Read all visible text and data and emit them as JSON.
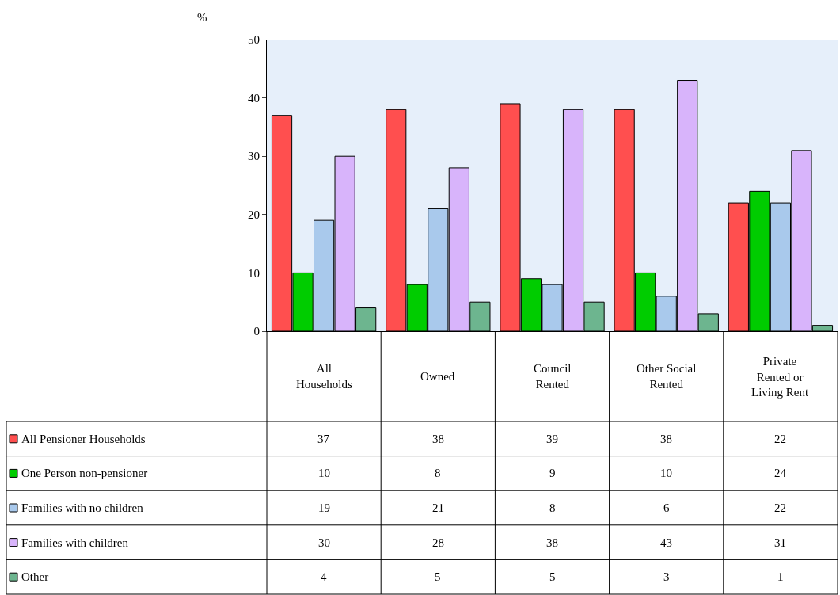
{
  "chart_data": {
    "type": "bar",
    "ylabel": "%",
    "categories": [
      "All Households",
      "Owned",
      "Council Rented",
      "Other Social Rented",
      "Private Rented or Living Rent"
    ],
    "series": [
      {
        "name": "All Pensioner Households",
        "color": "#ff4f4f",
        "values": [
          37,
          38,
          39,
          38,
          22
        ]
      },
      {
        "name": "One Person non-pensioner",
        "color": "#00cc00",
        "values": [
          10,
          8,
          9,
          10,
          24
        ]
      },
      {
        "name": "Families with no children",
        "color": "#a9c9ec",
        "values": [
          19,
          21,
          8,
          6,
          22
        ]
      },
      {
        "name": "Families with children",
        "color": "#d8b4fb",
        "values": [
          30,
          28,
          38,
          43,
          31
        ]
      },
      {
        "name": "Other",
        "color": "#6db58f",
        "values": [
          4,
          5,
          5,
          3,
          1
        ]
      }
    ],
    "ylim": [
      0,
      50
    ],
    "yticks": [
      0,
      10,
      20,
      30,
      40,
      50
    ],
    "grid": false,
    "data_labels": true,
    "legend": "bottom left"
  }
}
